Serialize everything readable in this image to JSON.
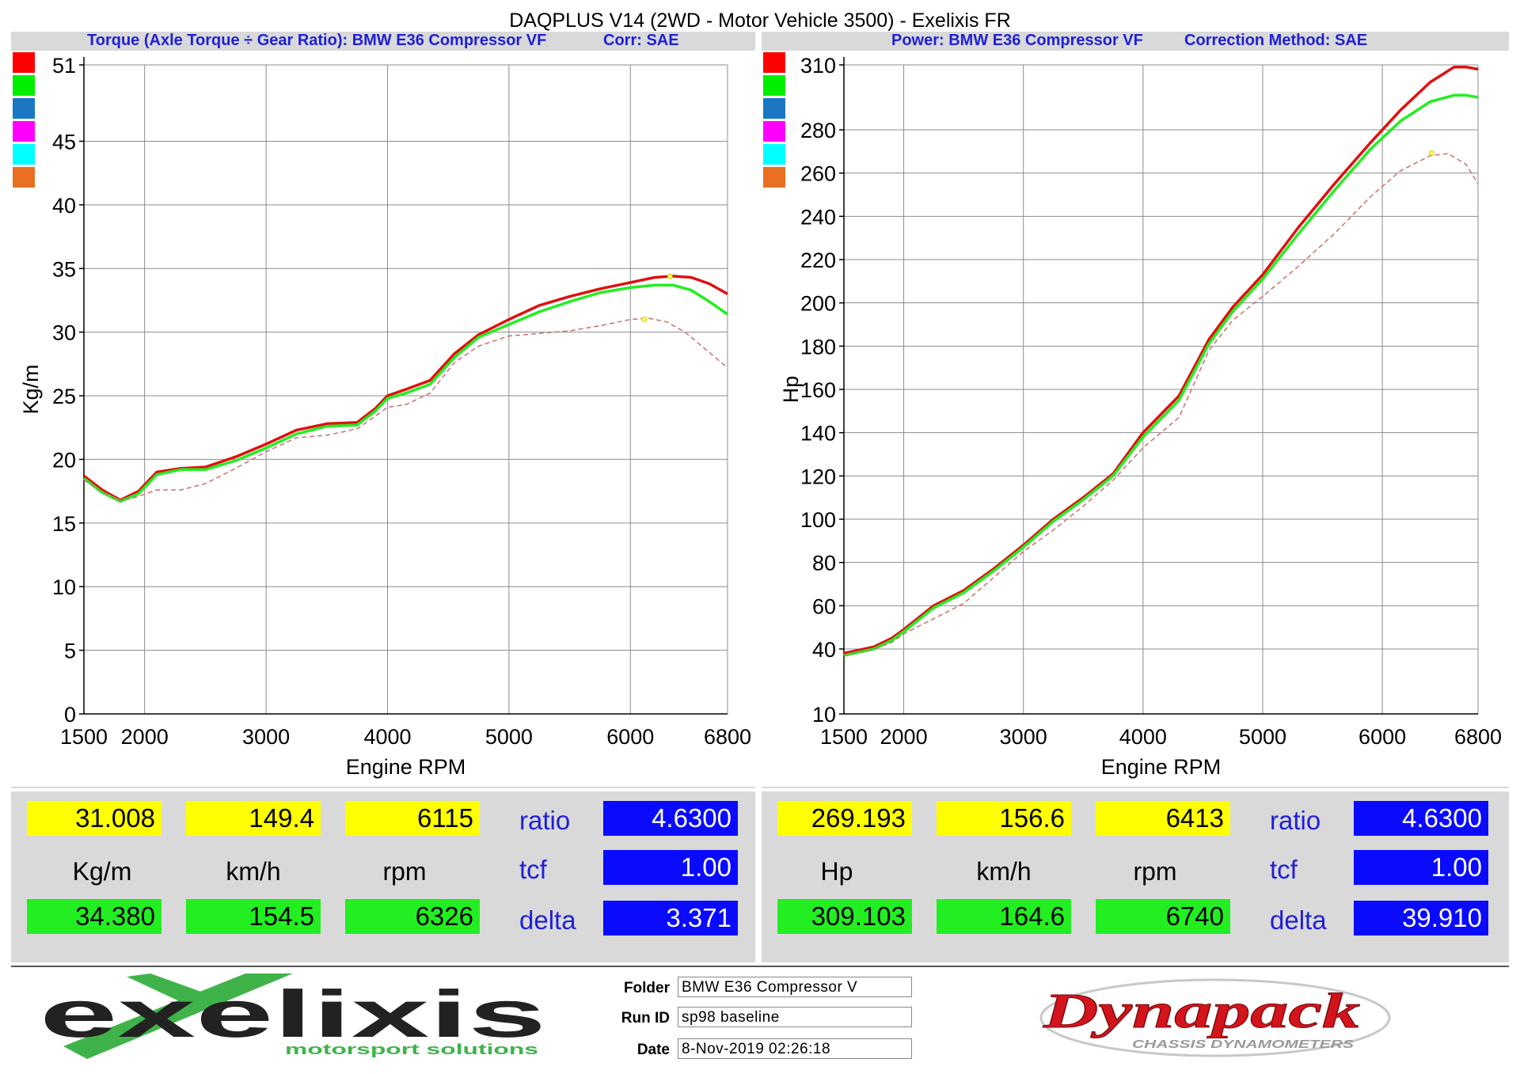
{
  "title": "DAQPLUS V14 (2WD - Motor Vehicle 3500) - Exelixis FR",
  "colors": {
    "red": "#e01010",
    "green": "#22ee22",
    "dashed": "#c87070",
    "swatches": [
      "#ff0000",
      "#00ee00",
      "#1a78c2",
      "#ff00ff",
      "#00ffff",
      "#e87020"
    ]
  },
  "chart_data": [
    {
      "type": "line",
      "subtitle": "Torque (Axle Torque ÷ Gear Ratio): BMW E36 Compressor VF",
      "correction": "Corr: SAE",
      "xlabel": "Engine RPM",
      "ylabel": "Kg/m",
      "xlim": [
        1500,
        6800
      ],
      "ylim": [
        0,
        51
      ],
      "xticks": [
        1500,
        2000,
        3000,
        4000,
        5000,
        6000,
        6800
      ],
      "yticks": [
        0,
        5,
        10,
        15,
        20,
        25,
        30,
        35,
        40,
        45,
        51
      ],
      "series": [
        {
          "color": "red",
          "style": "solid",
          "x": [
            1500,
            1650,
            1800,
            1950,
            2100,
            2300,
            2500,
            2750,
            3000,
            3250,
            3500,
            3750,
            3900,
            4000,
            4150,
            4350,
            4550,
            4750,
            5000,
            5250,
            5500,
            5750,
            6000,
            6200,
            6350,
            6500,
            6650,
            6800
          ],
          "y": [
            18.7,
            17.6,
            16.8,
            17.5,
            19.0,
            19.3,
            19.4,
            20.2,
            21.2,
            22.3,
            22.8,
            22.9,
            24.0,
            25.0,
            25.5,
            26.2,
            28.3,
            29.8,
            31.0,
            32.1,
            32.8,
            33.4,
            33.9,
            34.3,
            34.4,
            34.3,
            33.8,
            33.0
          ]
        },
        {
          "color": "green",
          "style": "solid",
          "x": [
            1500,
            1650,
            1800,
            1950,
            2100,
            2300,
            2500,
            2750,
            3000,
            3250,
            3500,
            3750,
            3900,
            4000,
            4150,
            4350,
            4550,
            4750,
            5000,
            5250,
            5500,
            5750,
            6000,
            6200,
            6350,
            6500,
            6650,
            6800
          ],
          "y": [
            18.5,
            17.4,
            16.7,
            17.3,
            18.8,
            19.2,
            19.2,
            19.9,
            20.9,
            22.0,
            22.6,
            22.7,
            23.8,
            24.8,
            25.2,
            25.9,
            28.0,
            29.6,
            30.6,
            31.6,
            32.4,
            33.1,
            33.5,
            33.7,
            33.7,
            33.3,
            32.4,
            31.4
          ]
        },
        {
          "color": "dashed",
          "style": "dashed",
          "x": [
            1500,
            1650,
            1800,
            1950,
            2100,
            2300,
            2500,
            2750,
            3000,
            3250,
            3500,
            3750,
            3900,
            4000,
            4150,
            4350,
            4550,
            4750,
            5000,
            5250,
            5500,
            5750,
            6000,
            6150,
            6300,
            6450,
            6600,
            6800
          ],
          "y": [
            18.4,
            17.4,
            16.7,
            17.1,
            17.6,
            17.6,
            18.1,
            19.3,
            20.6,
            21.7,
            21.9,
            22.4,
            23.4,
            24.1,
            24.3,
            25.2,
            27.6,
            28.9,
            29.7,
            29.9,
            30.1,
            30.5,
            31.0,
            31.1,
            30.8,
            30.0,
            28.8,
            27.2
          ]
        }
      ],
      "markers": [
        {
          "x": 6115,
          "y": 31.008
        },
        {
          "x": 6326,
          "y": 34.38
        }
      ]
    },
    {
      "type": "line",
      "subtitle": "Power: BMW E36 Compressor VF",
      "correction": "Correction Method: SAE",
      "xlabel": "Engine RPM",
      "ylabel": "Hp",
      "xlim": [
        1500,
        6800
      ],
      "ylim": [
        10,
        310
      ],
      "xticks": [
        1500,
        2000,
        3000,
        4000,
        5000,
        6000,
        6800
      ],
      "yticks": [
        10,
        40,
        60,
        80,
        100,
        120,
        140,
        160,
        180,
        200,
        220,
        240,
        260,
        280,
        310
      ],
      "series": [
        {
          "color": "red",
          "style": "solid",
          "x": [
            1500,
            1750,
            1900,
            2000,
            2250,
            2500,
            2750,
            3000,
            3250,
            3500,
            3750,
            4000,
            4300,
            4550,
            4750,
            5000,
            5300,
            5600,
            5900,
            6150,
            6400,
            6600,
            6700,
            6800
          ],
          "y": [
            38,
            41,
            45,
            49,
            60,
            67,
            77,
            88,
            100,
            110,
            121,
            140,
            157,
            183,
            198,
            213,
            235,
            255,
            274,
            289,
            302,
            309,
            309,
            308
          ]
        },
        {
          "color": "green",
          "style": "solid",
          "x": [
            1500,
            1750,
            1900,
            2000,
            2250,
            2500,
            2750,
            3000,
            3250,
            3500,
            3750,
            4000,
            4300,
            4550,
            4750,
            5000,
            5300,
            5600,
            5900,
            6150,
            6400,
            6600,
            6700,
            6800
          ],
          "y": [
            37,
            40,
            44,
            48,
            59,
            66,
            76,
            87,
            99,
            109,
            120,
            138,
            155,
            181,
            196,
            211,
            232,
            252,
            271,
            284,
            293,
            296,
            296,
            295
          ]
        },
        {
          "color": "dashed",
          "style": "dashed",
          "x": [
            1500,
            1750,
            1900,
            2000,
            2250,
            2500,
            2750,
            3000,
            3250,
            3500,
            3750,
            4000,
            4300,
            4550,
            4750,
            5000,
            5300,
            5600,
            5900,
            6150,
            6400,
            6550,
            6700,
            6800
          ],
          "y": [
            37,
            40,
            43,
            47,
            54,
            61,
            73,
            85,
            95,
            106,
            118,
            133,
            147,
            178,
            192,
            203,
            217,
            232,
            249,
            261,
            268,
            269,
            264,
            255
          ]
        }
      ],
      "markers": [
        {
          "x": 6413,
          "y": 269.193
        }
      ]
    }
  ],
  "readouts": [
    {
      "values": [
        "31.008",
        "149.4",
        "6115"
      ],
      "units": [
        "Kg/m",
        "km/h",
        "rpm"
      ],
      "max_values": [
        "34.380",
        "154.5",
        "6326"
      ],
      "ratio_label": "ratio",
      "ratio_value": "4.6300",
      "tcf_label": "tcf",
      "tcf_value": "1.00",
      "delta_label": "delta",
      "delta_value": "3.371"
    },
    {
      "values": [
        "269.193",
        "156.6",
        "6413"
      ],
      "units": [
        "Hp",
        "km/h",
        "rpm"
      ],
      "max_values": [
        "309.103",
        "164.6",
        "6740"
      ],
      "ratio_label": "ratio",
      "ratio_value": "4.6300",
      "tcf_label": "tcf",
      "tcf_value": "1.00",
      "delta_label": "delta",
      "delta_value": "39.910"
    }
  ],
  "footer": {
    "logo_left": {
      "text": "exelixis",
      "tagline": "motorsport solutions"
    },
    "fields": [
      {
        "label": "Folder",
        "value": "BMW E36 Compressor V"
      },
      {
        "label": "Run ID",
        "value": "sp98 baseline"
      },
      {
        "label": "Date",
        "value": "8-Nov-2019 02:26:18"
      }
    ],
    "logo_right": {
      "text": "Dynapack",
      "tagline": "CHASSIS DYNAMOMETERS"
    }
  }
}
